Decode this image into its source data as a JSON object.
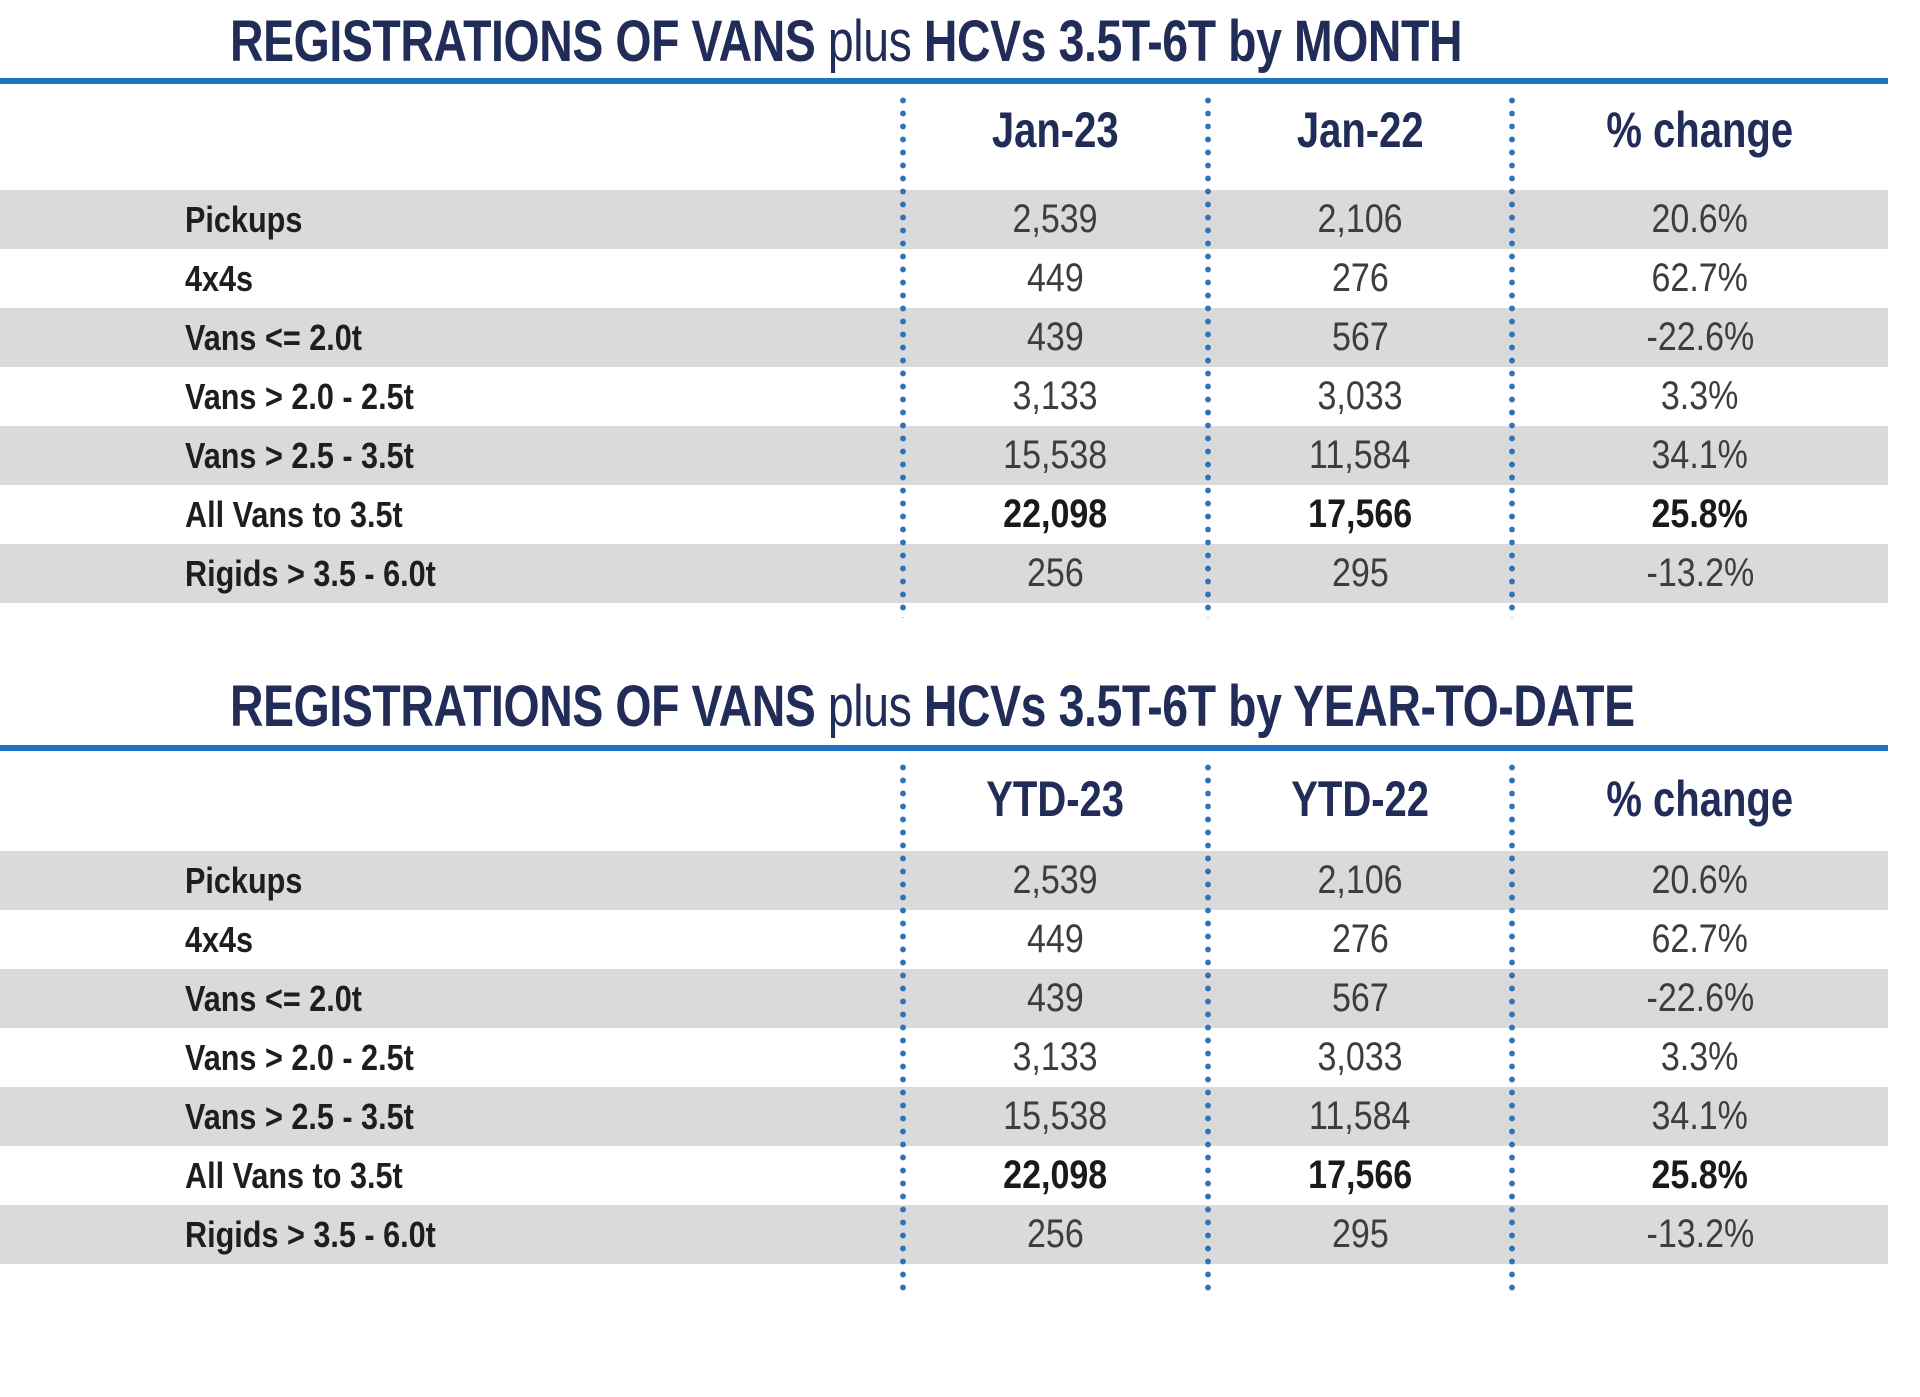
{
  "colors": {
    "title_navy": "#212c58",
    "rule_blue": "#1d74c4",
    "dot_blue": "#2f72b6",
    "row_band_gray": "#dadada",
    "label_text": "#1e1e1e",
    "value_text": "#3d3d3c"
  },
  "chart_data": [
    {
      "type": "table",
      "title": {
        "bold1": "REGISTRATIONS OF VANS",
        "light": "plus",
        "bold2": "HCVs 3.5T-6T by MONTH"
      },
      "columns": [
        "Jan-23",
        "Jan-22",
        "% change"
      ],
      "rows": [
        {
          "label": "Pickups",
          "v1": "2,539",
          "v2": "2,106",
          "pct": "20.6%"
        },
        {
          "label": "4x4s",
          "v1": "449",
          "v2": "276",
          "pct": "62.7%"
        },
        {
          "label": "Vans <= 2.0t",
          "v1": "439",
          "v2": "567",
          "pct": "-22.6%"
        },
        {
          "label": "Vans > 2.0 - 2.5t",
          "v1": "3,133",
          "v2": "3,033",
          "pct": "3.3%"
        },
        {
          "label": "Vans > 2.5 - 3.5t",
          "v1": "15,538",
          "v2": "11,584",
          "pct": "34.1%"
        },
        {
          "label": "All Vans to 3.5t",
          "v1": "22,098",
          "v2": "17,566",
          "pct": "25.8%"
        },
        {
          "label": "Rigids > 3.5 - 6.0t",
          "v1": "256",
          "v2": "295",
          "pct": "-13.2%"
        }
      ],
      "layout": {
        "grid": "off",
        "zebra_striping": true,
        "total_row_index": 5
      }
    },
    {
      "type": "table",
      "title": {
        "bold1": "REGISTRATIONS OF VANS",
        "light": "plus",
        "bold2": "HCVs 3.5T-6T by YEAR-TO-DATE"
      },
      "columns": [
        "YTD-23",
        "YTD-22",
        "% change"
      ],
      "rows": [
        {
          "label": "Pickups",
          "v1": "2,539",
          "v2": "2,106",
          "pct": "20.6%"
        },
        {
          "label": "4x4s",
          "v1": "449",
          "v2": "276",
          "pct": "62.7%"
        },
        {
          "label": "Vans <= 2.0t",
          "v1": "439",
          "v2": "567",
          "pct": "-22.6%"
        },
        {
          "label": "Vans > 2.0 - 2.5t",
          "v1": "3,133",
          "v2": "3,033",
          "pct": "3.3%"
        },
        {
          "label": "Vans > 2.5 - 3.5t",
          "v1": "15,538",
          "v2": "11,584",
          "pct": "34.1%"
        },
        {
          "label": "All Vans to 3.5t",
          "v1": "22,098",
          "v2": "17,566",
          "pct": "25.8%"
        },
        {
          "label": "Rigids > 3.5 - 6.0t",
          "v1": "256",
          "v2": "295",
          "pct": "-13.2%"
        }
      ],
      "layout": {
        "grid": "off",
        "zebra_striping": true,
        "total_row_index": 5
      }
    }
  ]
}
